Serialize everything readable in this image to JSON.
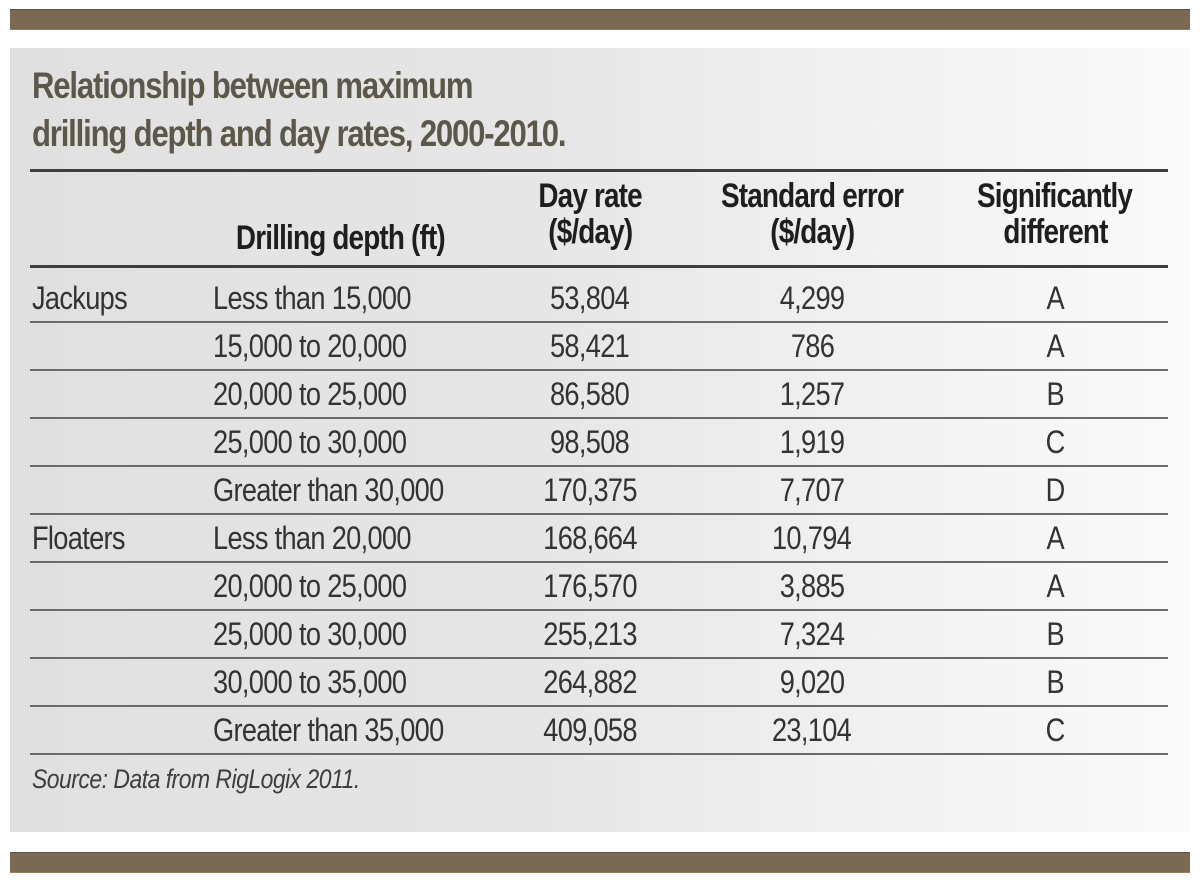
{
  "title": {
    "line1": "Relationship between maximum",
    "line2": "drilling depth and day rates, 2000-2010."
  },
  "colors": {
    "bar": "#7a6a52",
    "title": "#5c5849",
    "rule": "#3e3e3e"
  },
  "table": {
    "headers": {
      "group": "",
      "depth": "Drilling depth (ft)",
      "rate_line1": "Day rate",
      "rate_line2": "($/day)",
      "err_line1": "Standard error",
      "err_line2": "($/day)",
      "sig_line1": "Significantly",
      "sig_line2": "different"
    },
    "rows": [
      {
        "group": "Jackups",
        "depth": "Less than 15,000",
        "rate": "53,804",
        "error": "4,299",
        "sig": "A"
      },
      {
        "group": "",
        "depth": "15,000 to 20,000",
        "rate": "58,421",
        "error": "786",
        "sig": "A"
      },
      {
        "group": "",
        "depth": "20,000 to 25,000",
        "rate": "86,580",
        "error": "1,257",
        "sig": "B"
      },
      {
        "group": "",
        "depth": "25,000 to 30,000",
        "rate": "98,508",
        "error": "1,919",
        "sig": "C"
      },
      {
        "group": "",
        "depth": "Greater than 30,000",
        "rate": "170,375",
        "error": "7,707",
        "sig": "D"
      },
      {
        "group": "Floaters",
        "depth": "Less than 20,000",
        "rate": "168,664",
        "error": "10,794",
        "sig": "A"
      },
      {
        "group": "",
        "depth": "20,000 to 25,000",
        "rate": "176,570",
        "error": "3,885",
        "sig": "A"
      },
      {
        "group": "",
        "depth": "25,000 to 30,000",
        "rate": "255,213",
        "error": "7,324",
        "sig": "B"
      },
      {
        "group": "",
        "depth": "30,000 to 35,000",
        "rate": "264,882",
        "error": "9,020",
        "sig": "B"
      },
      {
        "group": "",
        "depth": "Greater than 35,000",
        "rate": "409,058",
        "error": "23,104",
        "sig": "C"
      }
    ]
  },
  "source": "Source: Data from RigLogix 2011."
}
